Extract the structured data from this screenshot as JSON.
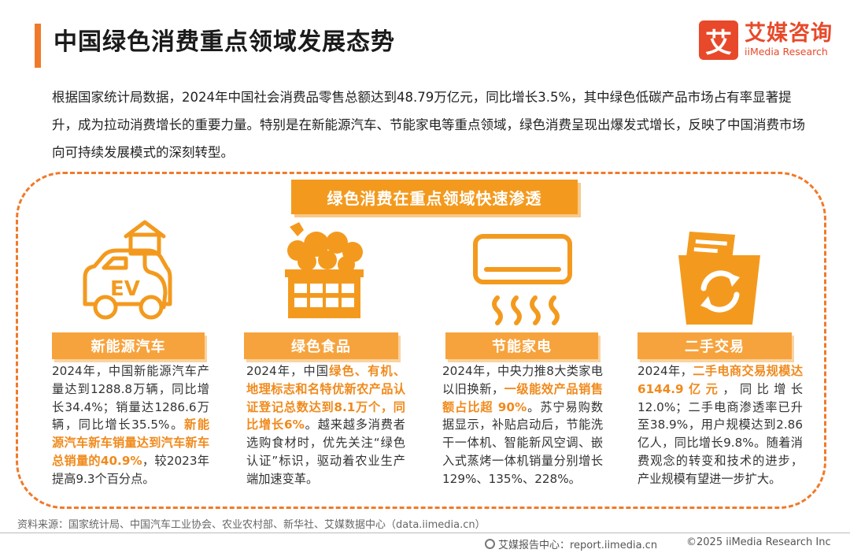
{
  "header": {
    "title": "中国绿色消费重点领域发展态势",
    "logo_mark": "艾",
    "logo_cn": "艾媒咨询",
    "logo_en": "iiMedia Research"
  },
  "intro": "根据国家统计局数据，2024年中国社会消费品零售总额达到48.79万亿元，同比增长3.5%，其中绿色低碳产品市场占有率显著提升，成为拉动消费增长的重要力量。特别是在新能源汽车、节能家电等重点领域，绿色消费呈现出爆发式增长，反映了中国消费市场向可持续发展模式的深刻转型。",
  "banner": "绿色消费在重点领域快速渗透",
  "ev": {
    "icon_text": "EV",
    "label": "新能源汽车",
    "p1": "2024年，中国新能源汽车产量达到1288.8万辆，同比增长34.4%；销量达1286.6万辆，同比增长35.5%。",
    "p2": "新能源汽车新车销量达到汽车新车总销量的40.9%",
    "p3": "，较2023年提高9.3个百分点。"
  },
  "food": {
    "label": "绿色食品",
    "p1": "2024年，中国",
    "p2": "绿色、有机、地理标志和名特优新农产品认证登记总数达到8.1万个，同比增长6%",
    "p3": "。越来越多消费者选购食材时，优先关注“绿色认证”标识，驱动着农业生产端加速变革。"
  },
  "appliance": {
    "label": "节能家电",
    "p1": "2024年，中央力推8大类家电以旧换新，",
    "p2": "一级能效产品销售额占比超 90%",
    "p3": "。苏宁易购数据显示，补贴启动后，节能洗干一体机、智能新风空调、嵌入式蒸烤一体机销量分别增长129%、135%、228%。"
  },
  "secondhand": {
    "label": "二手交易",
    "p1": "2024年，",
    "p2": "二手电商交易规模达6144.9亿元",
    "p3": "，同比增长12.0%；二手电商渗透率已升至38.9%，用户规模达到2.86亿人，同比增长9.8%。随着消费观念的转变和技术的进步，产业规模有望进一步扩大。"
  },
  "source": "资料来源：国家统计局、中国汽车工业协会、农业农村部、新华社、艾媒数据中心（data.iimedia.cn）",
  "footer": {
    "left": "艾媒报告中心：report.iimedia.cn",
    "right": "©2025  iiMedia Research  Inc"
  },
  "colors": {
    "accent": "#f39a1e",
    "label_bg": "#f7a33d",
    "highlight": "#f08a1c",
    "brand": "#e8492a"
  }
}
